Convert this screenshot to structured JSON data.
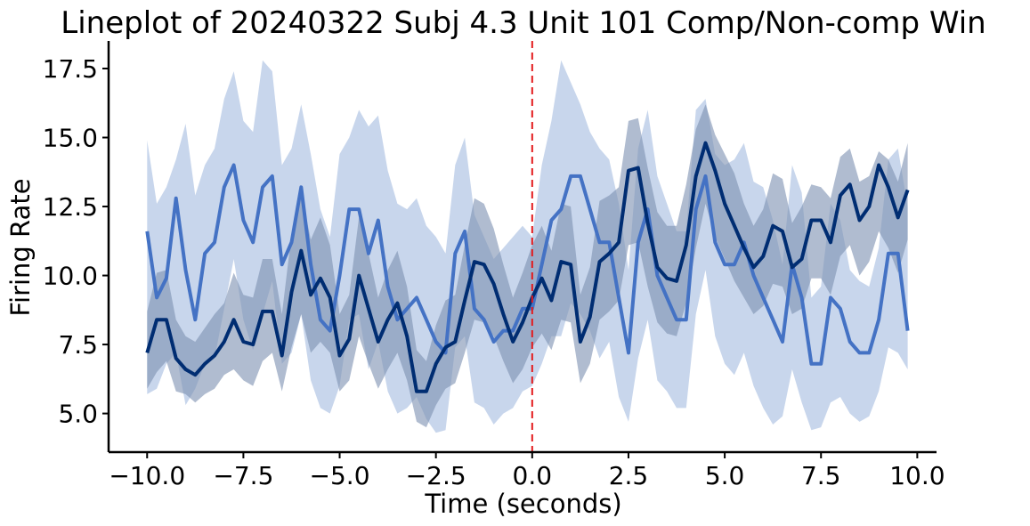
{
  "chart_data": {
    "type": "line",
    "title": "Lineplot of 20240322 Subj 4.3 Unit 101 Comp/Non-comp Win",
    "xlabel": "Time (seconds)",
    "ylabel": "Firing Rate",
    "xlim": [
      -11,
      10.5
    ],
    "ylim": [
      3.6,
      18.5
    ],
    "xticks": [
      "−10.0",
      "−7.5",
      "−5.0",
      "−2.5",
      "0.0",
      "2.5",
      "5.0",
      "7.5",
      "10.0"
    ],
    "xtick_values": [
      -10,
      -7.5,
      -5,
      -2.5,
      0,
      2.5,
      5,
      7.5,
      10
    ],
    "yticks": [
      "5.0",
      "7.5",
      "10.0",
      "12.5",
      "15.0",
      "17.5"
    ],
    "ytick_values": [
      5,
      7.5,
      10,
      12.5,
      15,
      17.5
    ],
    "grid": false,
    "legend": "none",
    "vline": {
      "x": 0,
      "color": "#e31a1c",
      "style": "dashed"
    },
    "x": [
      -10,
      -9.75,
      -9.5,
      -9.25,
      -9,
      -8.75,
      -8.5,
      -8.25,
      -8,
      -7.75,
      -7.5,
      -7.25,
      -7,
      -6.75,
      -6.5,
      -6.25,
      -6,
      -5.75,
      -5.5,
      -5.25,
      -5,
      -4.75,
      -4.5,
      -4.25,
      -4,
      -3.75,
      -3.5,
      -3.25,
      -3,
      -2.75,
      -2.5,
      -2.25,
      -2,
      -1.75,
      -1.5,
      -1.25,
      -1,
      -0.75,
      -0.5,
      -0.25,
      0,
      0.25,
      0.5,
      0.75,
      1,
      1.25,
      1.5,
      1.75,
      2,
      2.25,
      2.5,
      2.75,
      3,
      3.25,
      3.5,
      3.75,
      4,
      4.25,
      4.5,
      4.75,
      5,
      5.25,
      5.5,
      5.75,
      6,
      6.25,
      6.5,
      6.75,
      7,
      7.25,
      7.5,
      7.75,
      8,
      8.25,
      8.5,
      8.75,
      9,
      9.25,
      9.5,
      9.75
    ],
    "series": [
      {
        "color": "#4472c4",
        "band_color": "#b0c4e4",
        "values": [
          11.6,
          9.2,
          9.9,
          12.8,
          10.2,
          8.4,
          10.8,
          11.2,
          13.2,
          14.0,
          12.0,
          11.2,
          13.2,
          13.6,
          10.4,
          11.2,
          13.2,
          10.4,
          8.4,
          8.0,
          10.0,
          12.4,
          12.4,
          10.8,
          12.0,
          9.6,
          8.4,
          8.8,
          9.2,
          8.4,
          7.6,
          7.2,
          10.8,
          11.6,
          8.8,
          8.4,
          7.6,
          8.0,
          8.0,
          8.8,
          8.8,
          10.4,
          12.0,
          12.4,
          13.6,
          13.6,
          12.4,
          11.2,
          11.2,
          9.2,
          7.2,
          11.2,
          12.4,
          10.0,
          9.2,
          8.4,
          8.4,
          12.4,
          13.6,
          11.2,
          10.4,
          10.4,
          11.2,
          10.0,
          9.2,
          8.4,
          7.6,
          10.4,
          9.2,
          6.8,
          6.8,
          9.2,
          8.8,
          7.6,
          7.2,
          7.2,
          8.4,
          10.8,
          10.8,
          8.0
        ],
        "lower": [
          5.7,
          5.9,
          6.8,
          7.2,
          5.3,
          5.9,
          6.8,
          7.0,
          8.8,
          10.6,
          8.4,
          7.3,
          8.6,
          9.8,
          6.8,
          7.2,
          8.6,
          6.2,
          5.2,
          5.0,
          6.0,
          8.4,
          8.6,
          6.6,
          7.6,
          5.8,
          5.0,
          5.2,
          5.6,
          4.8,
          4.3,
          4.4,
          7.4,
          7.8,
          5.4,
          5.2,
          4.6,
          5.0,
          5.2,
          5.8,
          6.0,
          6.8,
          7.8,
          7.8,
          9.0,
          8.6,
          8.0,
          7.0,
          7.6,
          5.6,
          4.7,
          7.0,
          8.4,
          6.2,
          5.8,
          5.2,
          5.2,
          8.6,
          10.2,
          7.8,
          6.8,
          6.4,
          7.2,
          6.0,
          5.2,
          4.6,
          4.9,
          6.6,
          5.4,
          4.4,
          4.5,
          5.4,
          5.6,
          5.0,
          4.7,
          4.9,
          5.8,
          7.4,
          7.2,
          6.6
        ],
        "upper": [
          14.9,
          12.6,
          13.2,
          14.2,
          15.5,
          12.9,
          14.0,
          14.6,
          16.4,
          17.4,
          15.6,
          15.2,
          17.8,
          17.4,
          14.0,
          14.6,
          16.2,
          14.4,
          12.4,
          11.4,
          14.4,
          15.0,
          16.0,
          15.4,
          15.8,
          13.8,
          12.6,
          12.4,
          12.8,
          11.8,
          11.4,
          10.8,
          14.0,
          15.0,
          12.2,
          11.4,
          10.6,
          11.0,
          11.4,
          11.8,
          11.4,
          14.0,
          15.6,
          17.8,
          17.0,
          16.2,
          15.2,
          14.6,
          14.2,
          12.6,
          10.2,
          14.6,
          16.0,
          13.6,
          12.6,
          11.6,
          11.6,
          16.0,
          16.4,
          14.4,
          14.0,
          14.2,
          14.8,
          13.4,
          13.2,
          12.0,
          10.4,
          14.0,
          13.0,
          9.2,
          9.6,
          12.6,
          12.0,
          10.2,
          9.8,
          9.6,
          11.0,
          14.2,
          14.6,
          12.5
        ]
      },
      {
        "color": "#002d72",
        "band_color": "#7c8fb0",
        "values": [
          7.2,
          8.4,
          8.4,
          7.0,
          6.6,
          6.4,
          6.8,
          7.1,
          7.6,
          8.4,
          7.6,
          7.5,
          8.7,
          8.7,
          7.1,
          9.4,
          10.9,
          9.3,
          9.9,
          9.2,
          7.1,
          7.7,
          10.0,
          8.8,
          7.6,
          8.4,
          9.0,
          7.8,
          5.8,
          5.8,
          6.8,
          7.4,
          7.6,
          9.1,
          10.5,
          10.4,
          9.7,
          8.6,
          7.6,
          8.3,
          9.2,
          9.9,
          9.1,
          10.5,
          10.4,
          7.6,
          8.5,
          10.5,
          10.8,
          11.2,
          13.8,
          13.9,
          11.9,
          10.3,
          9.9,
          9.8,
          11.1,
          13.6,
          14.8,
          13.8,
          12.6,
          11.8,
          11.0,
          10.3,
          10.7,
          11.8,
          11.6,
          10.3,
          10.6,
          12.0,
          12.0,
          11.2,
          12.9,
          13.3,
          12.0,
          12.5,
          14.0,
          13.2,
          12.1,
          13.1
        ],
        "lower": [
          5.9,
          6.5,
          6.9,
          5.8,
          5.7,
          5.4,
          5.7,
          5.9,
          6.4,
          6.6,
          6.2,
          6.0,
          6.9,
          7.2,
          5.8,
          7.4,
          8.6,
          7.2,
          7.6,
          7.2,
          5.8,
          6.2,
          7.8,
          6.8,
          5.9,
          6.6,
          7.2,
          6.2,
          4.7,
          4.5,
          5.3,
          5.9,
          6.1,
          7.2,
          8.4,
          8.3,
          7.8,
          6.9,
          6.1,
          6.6,
          7.4,
          7.9,
          7.3,
          8.4,
          8.3,
          6.1,
          6.8,
          8.4,
          8.7,
          9.1,
          11.1,
          11.2,
          9.6,
          8.3,
          7.9,
          7.8,
          9.0,
          11.0,
          12.6,
          11.4,
          10.6,
          9.8,
          9.2,
          8.6,
          8.9,
          9.7,
          9.6,
          8.6,
          8.8,
          9.9,
          9.9,
          9.3,
          10.7,
          11.1,
          10.0,
          10.5,
          11.6,
          11.0,
          10.1,
          11.3
        ],
        "upper": [
          8.7,
          10.1,
          10.2,
          8.4,
          7.8,
          7.6,
          8.1,
          8.6,
          9.0,
          10.1,
          9.3,
          9.2,
          10.6,
          10.6,
          8.6,
          11.5,
          13.0,
          11.3,
          12.1,
          11.1,
          8.6,
          9.3,
          12.1,
          10.8,
          9.2,
          10.2,
          10.9,
          9.6,
          7.3,
          6.9,
          8.2,
          9.1,
          9.3,
          11.1,
          12.8,
          12.6,
          11.7,
          10.4,
          9.2,
          10.1,
          11.1,
          11.8,
          10.9,
          12.6,
          12.5,
          9.3,
          10.3,
          12.7,
          12.9,
          13.2,
          15.6,
          15.7,
          13.9,
          12.3,
          11.8,
          11.8,
          13.3,
          15.3,
          16.2,
          15.1,
          14.4,
          13.7,
          12.6,
          11.8,
          12.4,
          13.7,
          13.5,
          11.9,
          12.5,
          13.3,
          13.2,
          12.8,
          14.3,
          14.6,
          13.4,
          13.6,
          14.5,
          14.2,
          13.4,
          14.8
        ]
      }
    ]
  }
}
